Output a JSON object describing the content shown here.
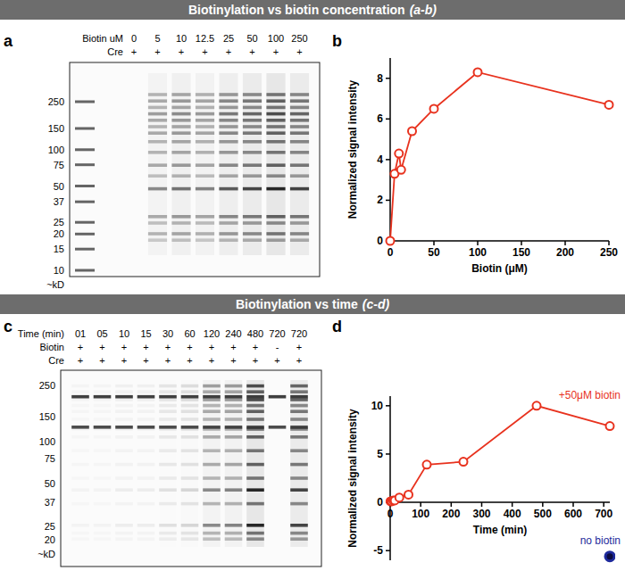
{
  "sections": [
    {
      "title": "Biotinylation vs biotin concentration",
      "subtitle": "(a-b)"
    },
    {
      "title": "Biotinylation vs time",
      "subtitle": "(c-d)"
    }
  ],
  "panels": [
    "a",
    "b",
    "c",
    "d"
  ],
  "gels": [
    {
      "rows": [
        {
          "label": "Biotin uM",
          "lanes": [
            "0",
            "5",
            "10",
            "12.5",
            "25",
            "50",
            "100",
            "250"
          ]
        },
        {
          "label": "Cre",
          "lanes": [
            "+",
            "+",
            "+",
            "+",
            "+",
            "+",
            "+",
            "+"
          ]
        }
      ],
      "markers": [
        250,
        150,
        100,
        75,
        50,
        37,
        25,
        20,
        15,
        10
      ],
      "unit": "~kD"
    },
    {
      "rows": [
        {
          "label": "Time (min)",
          "lanes": [
            "01",
            "05",
            "10",
            "15",
            "30",
            "60",
            "120",
            "240",
            "480",
            "720",
            "720"
          ]
        },
        {
          "label": "Biotin",
          "lanes": [
            "+",
            "+",
            "+",
            "+",
            "+",
            "+",
            "+",
            "+",
            "+",
            "-",
            "+"
          ]
        },
        {
          "label": "Cre",
          "lanes": [
            "+",
            "+",
            "+",
            "+",
            "+",
            "+",
            "+",
            "+",
            "+",
            "+",
            "+"
          ]
        }
      ],
      "markers": [
        250,
        150,
        100,
        75,
        50,
        37,
        25,
        20
      ],
      "unit": "~kD"
    }
  ],
  "chart_data": [
    {
      "type": "line",
      "x": [
        0,
        5,
        10,
        12.5,
        25,
        50,
        100,
        250
      ],
      "series": [
        {
          "color": "#e8321e",
          "values": [
            0,
            3.3,
            4.3,
            3.5,
            5.4,
            6.5,
            8.3,
            6.7
          ]
        }
      ],
      "x_label": "Biotin (μM)",
      "y_label": "Normalized signal intensity",
      "xlim": [
        0,
        250
      ],
      "xticks": [
        0,
        50,
        100,
        150,
        200,
        250
      ],
      "ylim": [
        0,
        9
      ],
      "yticks": [
        0,
        2,
        4,
        6,
        8
      ],
      "marker": "circle",
      "grid": false
    },
    {
      "type": "line",
      "series": [
        {
          "name": "+50μM biotin",
          "color": "#e8321e",
          "x": [
            1,
            5,
            10,
            15,
            30,
            60,
            120,
            240,
            480,
            720
          ],
          "values": [
            0.1,
            0.1,
            0.2,
            0.2,
            0.5,
            0.8,
            3.9,
            4.2,
            10,
            7.9
          ]
        },
        {
          "name": "no biotin",
          "color": "#1e2a9c",
          "x": [
            720
          ],
          "values": [
            -5.6
          ],
          "line_style": "none"
        }
      ],
      "x_label": "Time (min)",
      "y_label": "Normalized signal intensity",
      "xlim": [
        0,
        720
      ],
      "xticks": [
        0,
        100,
        200,
        300,
        400,
        500,
        600,
        700
      ],
      "ylim": [
        -6,
        11
      ],
      "yticks": [
        -5,
        0,
        5,
        10
      ],
      "marker": "circle",
      "grid": false
    }
  ]
}
